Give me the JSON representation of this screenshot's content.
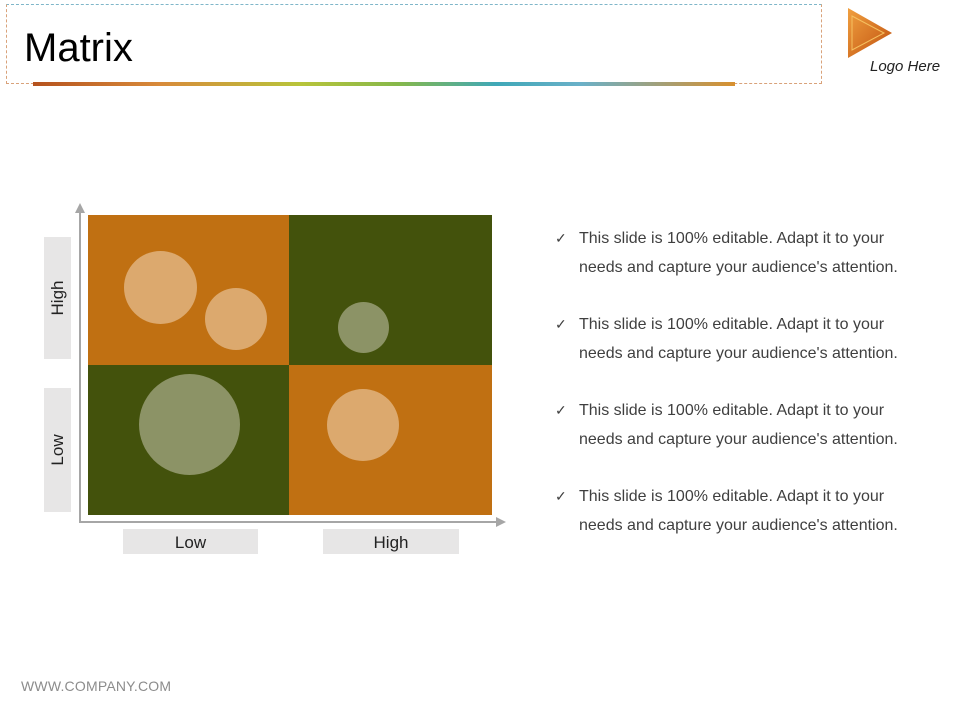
{
  "slide": {
    "title": "Matrix",
    "logo_text": "Logo Here",
    "footer": "WWW.COMPANY.COM"
  },
  "matrix": {
    "y_labels": [
      "High",
      "Low"
    ],
    "x_labels": [
      "Low",
      "High"
    ],
    "colors": {
      "orange": "#c07012",
      "green": "#43520c",
      "bubble_light": "#dca96e",
      "bubble_green": "#8c9366"
    }
  },
  "bullets": [
    {
      "line1": "This slide is 100% editable. Adapt it to your",
      "line2": "needs and capture your audience's attention."
    },
    {
      "line1": "This slide is 100% editable. Adapt it to your",
      "line2": "needs and capture your audience's attention."
    },
    {
      "line1": "This slide is 100% editable. Adapt it to your",
      "line2": "needs and capture your audience's attention."
    },
    {
      "line1": "This slide is 100% editable. Adapt it to your",
      "line2": "needs and capture your audience's attention."
    }
  ]
}
